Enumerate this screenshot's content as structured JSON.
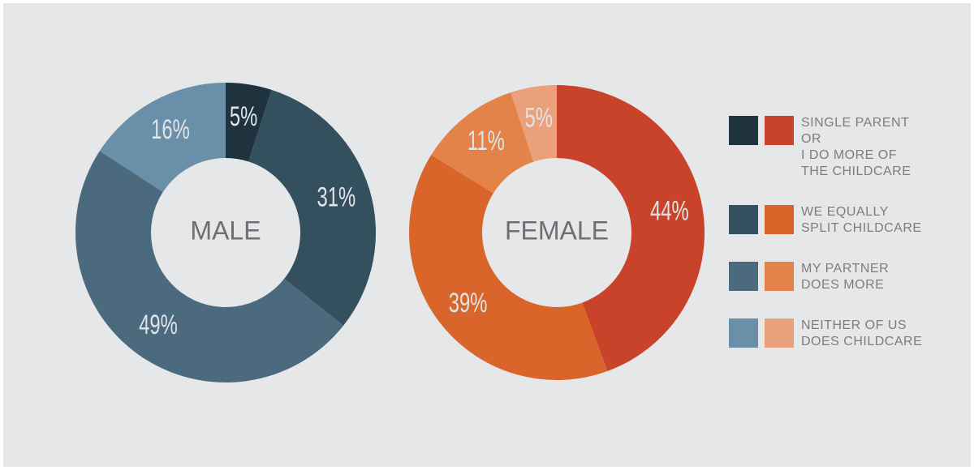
{
  "chart_data": [
    {
      "type": "donut",
      "title": "MALE",
      "values": [
        5,
        31,
        49,
        16
      ],
      "value_labels": [
        "5%",
        "31%",
        "49%",
        "16%"
      ],
      "colors": [
        "#1f333f",
        "#34505f",
        "#4b6a7e",
        "#6a8fa8"
      ]
    },
    {
      "type": "donut",
      "title": "FEMALE",
      "values": [
        44,
        39,
        11,
        5
      ],
      "value_labels": [
        "44%",
        "39%",
        "11%",
        "5%"
      ],
      "colors": [
        "#c9432a",
        "#d9652a",
        "#e3834a",
        "#eaa07a"
      ]
    }
  ],
  "legend": [
    "SINGLE PARENT\nOR\nI DO MORE OF\nTHE CHILDCARE",
    "WE EQUALLY\nSPLIT CHILDCARE",
    "MY PARTNER\nDOES MORE",
    "NEITHER OF US\nDOES CHILDCARE"
  ]
}
